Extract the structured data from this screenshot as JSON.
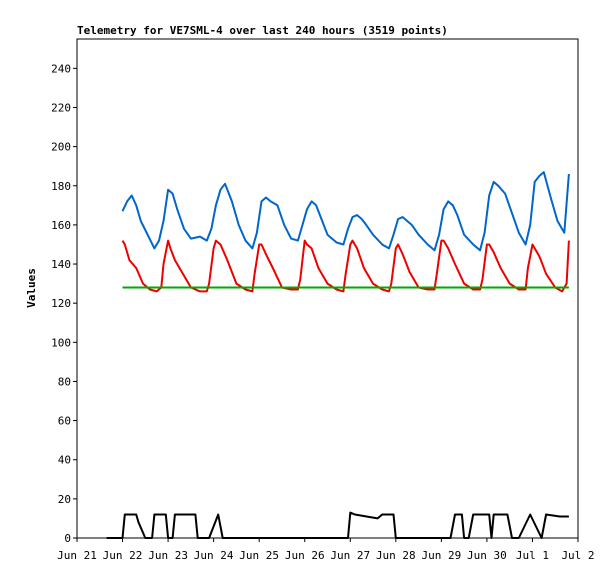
{
  "chart_data": {
    "type": "line",
    "title": "Telemetry for VE7SML-4 over last 240 hours (3519 points)",
    "xlabel": "",
    "ylabel": "Values",
    "ylim": [
      0,
      255
    ],
    "y_ticks": [
      0,
      20,
      40,
      60,
      80,
      100,
      120,
      140,
      160,
      180,
      200,
      220,
      240
    ],
    "x_tick_labels": [
      "Jun 21",
      "Jun 22",
      "Jun 23",
      "Jun 24",
      "Jun 25",
      "Jun 26",
      "Jun 27",
      "Jun 28",
      "Jun 29",
      "Jun 30",
      "Jul 1",
      "Jul 2"
    ],
    "x_unit": "days from Jun 21",
    "xlim": [
      0,
      11
    ],
    "grid": false,
    "series": [
      {
        "color": "#0066cc",
        "x": [
          1.0,
          1.1,
          1.2,
          1.3,
          1.4,
          1.55,
          1.7,
          1.8,
          1.9,
          2.0,
          2.1,
          2.2,
          2.35,
          2.5,
          2.7,
          2.85,
          2.95,
          3.05,
          3.15,
          3.25,
          3.4,
          3.55,
          3.7,
          3.85,
          3.95,
          4.05,
          4.15,
          4.25,
          4.4,
          4.55,
          4.7,
          4.85,
          4.95,
          5.05,
          5.15,
          5.25,
          5.35,
          5.5,
          5.7,
          5.85,
          5.95,
          6.05,
          6.15,
          6.25,
          6.35,
          6.5,
          6.7,
          6.85,
          6.95,
          7.05,
          7.15,
          7.25,
          7.35,
          7.5,
          7.7,
          7.85,
          7.95,
          8.05,
          8.15,
          8.25,
          8.35,
          8.5,
          8.7,
          8.85,
          8.95,
          9.05,
          9.15,
          9.25,
          9.4,
          9.55,
          9.7,
          9.85,
          9.95,
          10.05,
          10.15,
          10.25,
          10.4,
          10.55,
          10.7,
          10.8
        ],
        "y": [
          167,
          172,
          175,
          170,
          162,
          155,
          148,
          152,
          162,
          178,
          176,
          168,
          158,
          153,
          154,
          152,
          158,
          170,
          178,
          181,
          172,
          160,
          152,
          148,
          156,
          172,
          174,
          172,
          170,
          160,
          153,
          152,
          160,
          168,
          172,
          170,
          164,
          155,
          151,
          150,
          158,
          164,
          165,
          163,
          160,
          155,
          150,
          148,
          155,
          163,
          164,
          162,
          160,
          155,
          150,
          147,
          155,
          168,
          172,
          170,
          165,
          155,
          150,
          147,
          156,
          175,
          182,
          180,
          176,
          166,
          156,
          150,
          160,
          182,
          185,
          187,
          174,
          162,
          156,
          186
        ]
      },
      {
        "color": "#ee0000",
        "x": [
          1.0,
          1.05,
          1.15,
          1.3,
          1.45,
          1.6,
          1.75,
          1.85,
          1.9,
          2.0,
          2.05,
          2.15,
          2.3,
          2.5,
          2.7,
          2.85,
          2.9,
          3.0,
          3.05,
          3.15,
          3.3,
          3.5,
          3.7,
          3.85,
          3.9,
          4.0,
          4.05,
          4.15,
          4.3,
          4.5,
          4.7,
          4.85,
          4.9,
          5.0,
          5.05,
          5.15,
          5.3,
          5.5,
          5.7,
          5.85,
          5.9,
          6.0,
          6.05,
          6.15,
          6.3,
          6.5,
          6.7,
          6.85,
          6.9,
          7.0,
          7.05,
          7.15,
          7.3,
          7.5,
          7.7,
          7.85,
          7.9,
          8.0,
          8.05,
          8.15,
          8.3,
          8.5,
          8.7,
          8.85,
          8.9,
          9.0,
          9.05,
          9.15,
          9.3,
          9.5,
          9.7,
          9.85,
          9.9,
          10.0,
          10.05,
          10.15,
          10.3,
          10.5,
          10.65,
          10.75,
          10.8
        ],
        "y": [
          152,
          150,
          142,
          138,
          130,
          127,
          126,
          128,
          140,
          152,
          148,
          142,
          136,
          128,
          126,
          126,
          130,
          148,
          152,
          150,
          142,
          130,
          127,
          126,
          135,
          150,
          150,
          145,
          138,
          128,
          127,
          127,
          132,
          152,
          150,
          148,
          138,
          130,
          127,
          126,
          135,
          150,
          152,
          148,
          138,
          130,
          127,
          126,
          130,
          148,
          150,
          145,
          136,
          128,
          127,
          127,
          135,
          152,
          152,
          148,
          140,
          130,
          127,
          127,
          132,
          150,
          150,
          146,
          138,
          130,
          127,
          127,
          138,
          150,
          148,
          144,
          135,
          128,
          126,
          130,
          152
        ]
      },
      {
        "color": "#00aa00",
        "x": [
          1.0,
          10.8
        ],
        "y": [
          128,
          128
        ]
      },
      {
        "color": "#000000",
        "x": [
          0.65,
          1.0,
          1.05,
          1.3,
          1.35,
          1.5,
          1.65,
          1.7,
          1.95,
          2.0,
          2.1,
          2.15,
          2.6,
          2.65,
          2.9,
          3.1,
          3.2,
          5.0,
          5.95,
          6.0,
          6.1,
          6.6,
          6.7,
          6.95,
          7.0,
          7.05,
          8.2,
          8.3,
          8.45,
          8.5,
          8.6,
          8.7,
          9.05,
          9.1,
          9.15,
          9.45,
          9.55,
          9.7,
          9.95,
          10.2,
          10.3,
          10.6,
          10.8
        ],
        "y": [
          0,
          0,
          12,
          12,
          8,
          0,
          0,
          12,
          12,
          0,
          0,
          12,
          12,
          0,
          0,
          12,
          0,
          0,
          0,
          13,
          12,
          10,
          12,
          12,
          0,
          0,
          0,
          12,
          12,
          0,
          0,
          12,
          12,
          0,
          12,
          12,
          0,
          0,
          12,
          0,
          12,
          11,
          11
        ]
      }
    ]
  }
}
